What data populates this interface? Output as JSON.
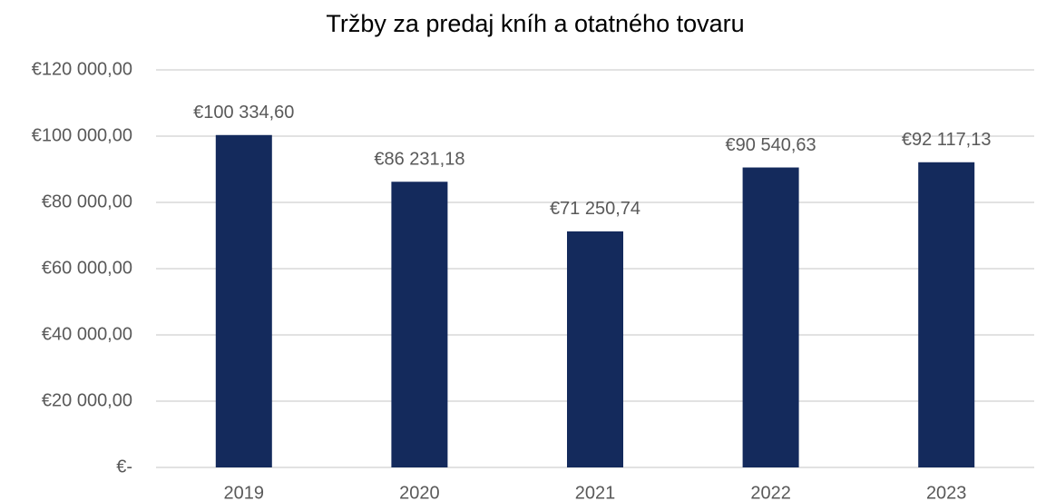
{
  "chart_data": {
    "type": "bar",
    "title": "Tržby za predaj kníh a otatného tovaru",
    "categories": [
      "2019",
      "2020",
      "2021",
      "2022",
      "2023"
    ],
    "values": [
      100334.6,
      86231.18,
      71250.74,
      90540.63,
      92117.13
    ],
    "value_labels": [
      "€100 334,60",
      "€86 231,18",
      "€71 250,74",
      "€90 540,63",
      "€92 117,13"
    ],
    "color": "#142a5c",
    "ylim": [
      0,
      120000
    ],
    "yticks": [
      {
        "value": 0,
        "label": "€-"
      },
      {
        "value": 20000,
        "label": "€20 000,00"
      },
      {
        "value": 40000,
        "label": "€40 000,00"
      },
      {
        "value": 60000,
        "label": "€60 000,00"
      },
      {
        "value": 80000,
        "label": "€80 000,00"
      },
      {
        "value": 100000,
        "label": "€100 000,00"
      },
      {
        "value": 120000,
        "label": "€120 000,00"
      }
    ],
    "grid": true
  }
}
